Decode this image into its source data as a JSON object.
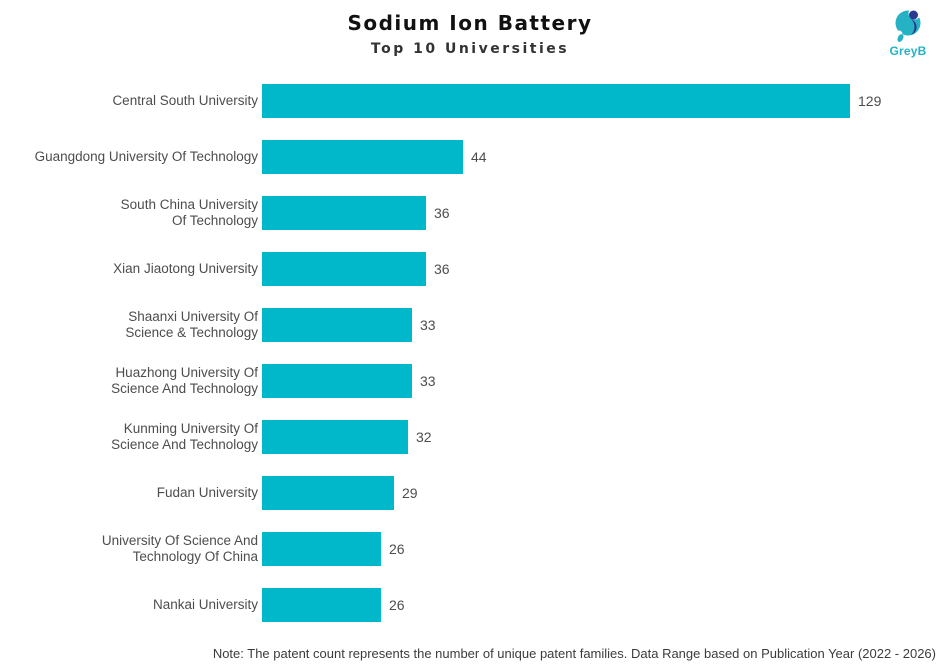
{
  "logo": {
    "text": "GreyB",
    "teal": "#25b2c5",
    "navy": "#2b3990"
  },
  "chart_data": {
    "type": "bar",
    "orientation": "horizontal",
    "title": "Sodium Ion Battery",
    "subtitle": "Top 10 Universities",
    "bar_color": "#00b8ca",
    "xlim": [
      0,
      129
    ],
    "grid": false,
    "legend": null,
    "categories": [
      "Central South University",
      "Guangdong University Of Technology",
      "South China University Of Technology",
      "Xian Jiaotong University",
      "Shaanxi University Of Science & Technology",
      "Huazhong University Of Science And Technology",
      "Kunming University Of Science And Technology",
      "Fudan University",
      "University Of Science And Technology Of China",
      "Nankai University"
    ],
    "label_lines": [
      [
        "Central South University"
      ],
      [
        "Guangdong University Of Technology"
      ],
      [
        "South China University",
        "Of Technology"
      ],
      [
        "Xian Jiaotong University"
      ],
      [
        "Shaanxi University Of",
        "Science & Technology"
      ],
      [
        "Huazhong University Of",
        "Science And Technology"
      ],
      [
        "Kunming University Of",
        "Science And Technology"
      ],
      [
        "Fudan University"
      ],
      [
        "University Of Science And",
        "Technology Of China"
      ],
      [
        "Nankai University"
      ]
    ],
    "values": [
      129,
      44,
      36,
      36,
      33,
      33,
      32,
      29,
      26,
      26
    ]
  },
  "note": {
    "text": "Note: The patent count represents the number of unique patent families. Data Range based on Publication Year (2022 - 2026)"
  }
}
